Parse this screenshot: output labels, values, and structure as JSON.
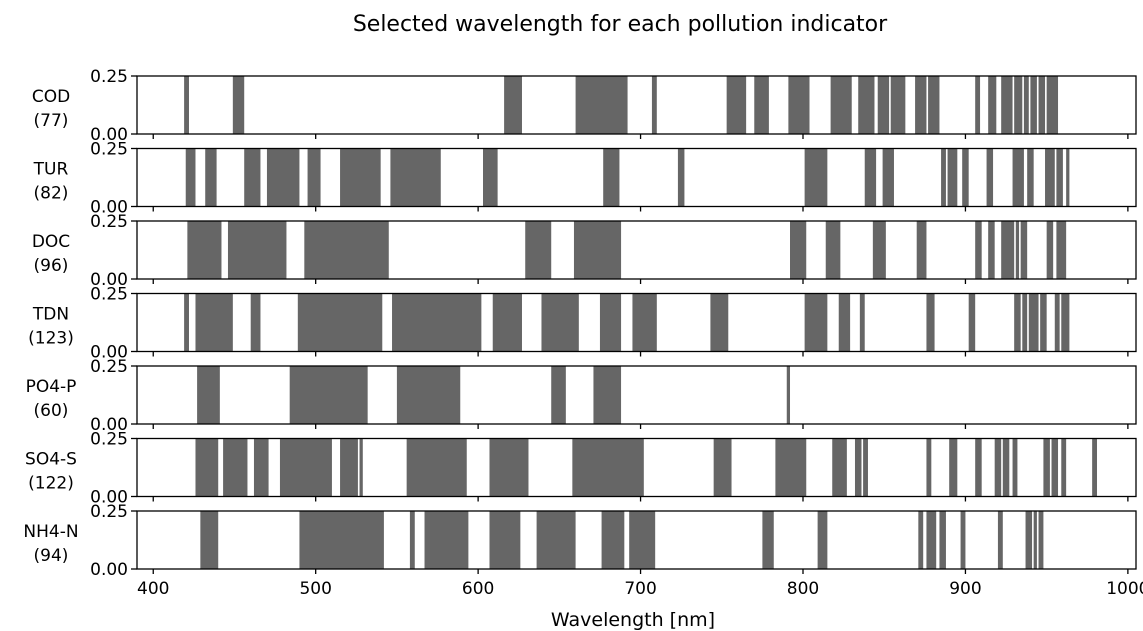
{
  "chart_data": {
    "type": "bar",
    "title": "Selected wavelength for each pollution indicator",
    "xlabel": "Wavelength [nm]",
    "xlim": [
      390,
      1005
    ],
    "ylim": [
      0,
      0.25
    ],
    "xticks": [
      "400",
      "500",
      "600",
      "700",
      "800",
      "900",
      "1000"
    ],
    "xtick_values": [
      400,
      500,
      600,
      700,
      800,
      900,
      1000
    ],
    "yticks": [
      "0.00",
      "0.25"
    ],
    "ytick_values": [
      0,
      0.25
    ],
    "bar_color": "#666666",
    "bar_height": 0.25,
    "series": [
      {
        "name": "COD",
        "count": "(77)",
        "ranges": [
          [
            419,
            422
          ],
          [
            449,
            456
          ],
          [
            616,
            627
          ],
          [
            660,
            692
          ],
          [
            707,
            710
          ],
          [
            753,
            765
          ],
          [
            770,
            779
          ],
          [
            791,
            804
          ],
          [
            817,
            830
          ],
          [
            834,
            844
          ],
          [
            846,
            853
          ],
          [
            854,
            863
          ],
          [
            869,
            876
          ],
          [
            877,
            884
          ],
          [
            906,
            909
          ],
          [
            914,
            919
          ],
          [
            922,
            929
          ],
          [
            930,
            935
          ],
          [
            936,
            939
          ],
          [
            940,
            944
          ],
          [
            945,
            949
          ],
          [
            950,
            957
          ]
        ]
      },
      {
        "name": "TUR",
        "count": "(82)",
        "ranges": [
          [
            420,
            426
          ],
          [
            432,
            439
          ],
          [
            456,
            466
          ],
          [
            470,
            490
          ],
          [
            495,
            503
          ],
          [
            515,
            540
          ],
          [
            546,
            577
          ],
          [
            603,
            612
          ],
          [
            677,
            687
          ],
          [
            723,
            727
          ],
          [
            801,
            815
          ],
          [
            838,
            845
          ],
          [
            849,
            856
          ],
          [
            885,
            888
          ],
          [
            889,
            895
          ],
          [
            898,
            902
          ],
          [
            913,
            917
          ],
          [
            929,
            936
          ],
          [
            938,
            942
          ],
          [
            949,
            955
          ],
          [
            956,
            960
          ],
          [
            962,
            964
          ]
        ]
      },
      {
        "name": "DOC",
        "count": "(96)",
        "ranges": [
          [
            421,
            442
          ],
          [
            446,
            482
          ],
          [
            493,
            545
          ],
          [
            629,
            645
          ],
          [
            659,
            688
          ],
          [
            792,
            802
          ],
          [
            814,
            823
          ],
          [
            843,
            851
          ],
          [
            870,
            876
          ],
          [
            906,
            910
          ],
          [
            914,
            918
          ],
          [
            922,
            930
          ],
          [
            931,
            933
          ],
          [
            934,
            938
          ],
          [
            950,
            954
          ],
          [
            956,
            962
          ]
        ]
      },
      {
        "name": "TDN",
        "count": "(123)",
        "ranges": [
          [
            419,
            422
          ],
          [
            426,
            449
          ],
          [
            460,
            466
          ],
          [
            489,
            541
          ],
          [
            547,
            602
          ],
          [
            609,
            627
          ],
          [
            639,
            662
          ],
          [
            675,
            688
          ],
          [
            695,
            710
          ],
          [
            743,
            754
          ],
          [
            801,
            815
          ],
          [
            822,
            829
          ],
          [
            835,
            838
          ],
          [
            876,
            881
          ],
          [
            902,
            906
          ],
          [
            930,
            934
          ],
          [
            935,
            938
          ],
          [
            939,
            945
          ],
          [
            946,
            950
          ],
          [
            955,
            958
          ],
          [
            959,
            964
          ]
        ]
      },
      {
        "name": "PO4-P",
        "count": "(60)",
        "ranges": [
          [
            427,
            441
          ],
          [
            484,
            532
          ],
          [
            550,
            589
          ],
          [
            645,
            654
          ],
          [
            671,
            688
          ],
          [
            790,
            792
          ]
        ]
      },
      {
        "name": "SO4-S",
        "count": "(122)",
        "ranges": [
          [
            426,
            440
          ],
          [
            443,
            458
          ],
          [
            462,
            471
          ],
          [
            478,
            510
          ],
          [
            515,
            526
          ],
          [
            527,
            529
          ],
          [
            556,
            593
          ],
          [
            607,
            631
          ],
          [
            658,
            702
          ],
          [
            745,
            756
          ],
          [
            783,
            802
          ],
          [
            818,
            827
          ],
          [
            832,
            836
          ],
          [
            837,
            840
          ],
          [
            876,
            879
          ],
          [
            890,
            895
          ],
          [
            906,
            910
          ],
          [
            918,
            922
          ],
          [
            923,
            927
          ],
          [
            929,
            932
          ],
          [
            948,
            952
          ],
          [
            953,
            957
          ],
          [
            959,
            962
          ],
          [
            978,
            981
          ]
        ]
      },
      {
        "name": "NH4-N",
        "count": "(94)",
        "ranges": [
          [
            429,
            440
          ],
          [
            490,
            542
          ],
          [
            558,
            561
          ],
          [
            567,
            594
          ],
          [
            607,
            626
          ],
          [
            636,
            660
          ],
          [
            676,
            690
          ],
          [
            693,
            709
          ],
          [
            775,
            782
          ],
          [
            809,
            815
          ],
          [
            871,
            874
          ],
          [
            876,
            882
          ],
          [
            884,
            888
          ],
          [
            897,
            900
          ],
          [
            920,
            923
          ],
          [
            937,
            941
          ],
          [
            942,
            944
          ],
          [
            945,
            948
          ]
        ]
      }
    ]
  }
}
